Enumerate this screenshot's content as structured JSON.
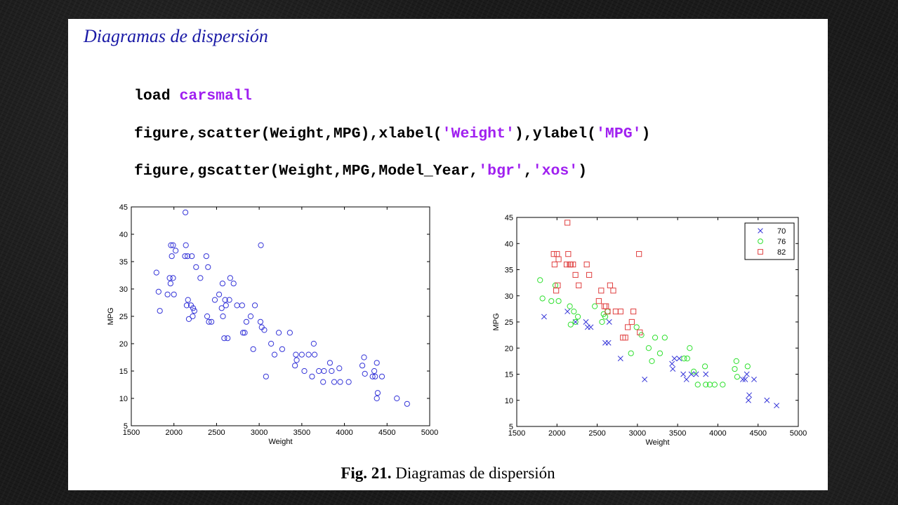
{
  "slide": {
    "title": "Diagramas de dispersión",
    "code": {
      "line1": {
        "plain": "load ",
        "str": "carsmall"
      },
      "line2": {
        "p1": "figure,scatter(Weight,MPG),xlabel(",
        "s1": "'Weight'",
        "p2": "),ylabel(",
        "s2": "'MPG'",
        "p3": ")"
      },
      "line3": {
        "p1": "figure,gscatter(Weight,MPG,Model_Year,",
        "s1": "'bgr'",
        "p2": ",",
        "s2": "'xos'",
        "p3": ")"
      }
    },
    "caption": {
      "label": "Fig. 21.",
      "text": "Diagramas de dispersión"
    }
  },
  "colors": {
    "blue": "#3434d8",
    "green": "#2ee02e",
    "red": "#e04040",
    "title": "#1a1aa6",
    "keyword": "#a020f0"
  },
  "chart_data": [
    {
      "type": "scatter",
      "title": "",
      "xlabel": "Weight",
      "ylabel": "MPG",
      "xlim": [
        1500,
        5000
      ],
      "ylim": [
        5,
        45
      ],
      "xticks": [
        1500,
        2000,
        2500,
        3000,
        3500,
        4000,
        4500,
        5000
      ],
      "yticks": [
        5,
        10,
        15,
        20,
        25,
        30,
        35,
        40,
        45
      ],
      "marker": "o",
      "color": "#3434d8",
      "points": [
        [
          1795,
          33
        ],
        [
          1820,
          29.5
        ],
        [
          1835,
          26
        ],
        [
          1925,
          29
        ],
        [
          1950,
          32
        ],
        [
          1960,
          31
        ],
        [
          1965,
          38
        ],
        [
          1975,
          36
        ],
        [
          1990,
          38
        ],
        [
          1990,
          32
        ],
        [
          2000,
          29
        ],
        [
          2020,
          37
        ],
        [
          2130,
          36
        ],
        [
          2135,
          44
        ],
        [
          2140,
          38
        ],
        [
          2150,
          27
        ],
        [
          2160,
          36
        ],
        [
          2165,
          28
        ],
        [
          2175,
          24.5
        ],
        [
          2200,
          27
        ],
        [
          2210,
          36
        ],
        [
          2220,
          25
        ],
        [
          2225,
          26.5
        ],
        [
          2240,
          26
        ],
        [
          2260,
          34
        ],
        [
          2310,
          32
        ],
        [
          2380,
          36
        ],
        [
          2390,
          25
        ],
        [
          2400,
          34
        ],
        [
          2410,
          24
        ],
        [
          2440,
          24
        ],
        [
          2480,
          28
        ],
        [
          2530,
          29
        ],
        [
          2560,
          26.5
        ],
        [
          2570,
          31
        ],
        [
          2575,
          25
        ],
        [
          2590,
          21
        ],
        [
          2600,
          28
        ],
        [
          2610,
          27
        ],
        [
          2630,
          21
        ],
        [
          2650,
          28
        ],
        [
          2660,
          32
        ],
        [
          2700,
          31
        ],
        [
          2740,
          27
        ],
        [
          2800,
          27
        ],
        [
          2810,
          22
        ],
        [
          2830,
          22
        ],
        [
          2850,
          24
        ],
        [
          2900,
          25
        ],
        [
          2930,
          19
        ],
        [
          2950,
          27
        ],
        [
          3015,
          24
        ],
        [
          3020,
          38
        ],
        [
          3030,
          23
        ],
        [
          3060,
          22.5
        ],
        [
          3080,
          14
        ],
        [
          3140,
          20
        ],
        [
          3180,
          18
        ],
        [
          3230,
          22
        ],
        [
          3270,
          19
        ],
        [
          3360,
          22
        ],
        [
          3420,
          16
        ],
        [
          3430,
          18
        ],
        [
          3440,
          17
        ],
        [
          3500,
          18
        ],
        [
          3530,
          15
        ],
        [
          3580,
          18
        ],
        [
          3620,
          14
        ],
        [
          3640,
          20
        ],
        [
          3650,
          18
        ],
        [
          3700,
          15
        ],
        [
          3750,
          13
        ],
        [
          3760,
          15
        ],
        [
          3830,
          16.5
        ],
        [
          3850,
          15
        ],
        [
          3880,
          13
        ],
        [
          3940,
          15.5
        ],
        [
          3950,
          13
        ],
        [
          4050,
          13
        ],
        [
          4210,
          16
        ],
        [
          4230,
          17.5
        ],
        [
          4240,
          14.5
        ],
        [
          4330,
          14
        ],
        [
          4350,
          15
        ],
        [
          4360,
          14
        ],
        [
          4380,
          16.5
        ],
        [
          4380,
          10
        ],
        [
          4390,
          11
        ],
        [
          4440,
          14
        ],
        [
          4615,
          10
        ],
        [
          4735,
          9
        ]
      ]
    },
    {
      "type": "scatter",
      "title": "",
      "xlabel": "Weight",
      "ylabel": "MPG",
      "xlim": [
        1500,
        5000
      ],
      "ylim": [
        5,
        45
      ],
      "xticks": [
        1500,
        2000,
        2500,
        3000,
        3500,
        4000,
        4500,
        5000
      ],
      "yticks": [
        5,
        10,
        15,
        20,
        25,
        30,
        35,
        40,
        45
      ],
      "legend": "top-right",
      "series": [
        {
          "name": "70",
          "marker": "x",
          "color": "#3434d8",
          "points": [
            [
              1840,
              26
            ],
            [
              2130,
              27
            ],
            [
              2230,
              25
            ],
            [
              2360,
              25
            ],
            [
              2380,
              24
            ],
            [
              2420,
              24
            ],
            [
              2600,
              21
            ],
            [
              2640,
              21
            ],
            [
              2650,
              25
            ],
            [
              2790,
              18
            ],
            [
              3090,
              14
            ],
            [
              3430,
              17
            ],
            [
              3440,
              16
            ],
            [
              3460,
              18
            ],
            [
              3520,
              18
            ],
            [
              3570,
              15
            ],
            [
              3610,
              14
            ],
            [
              3670,
              15
            ],
            [
              3730,
              15
            ],
            [
              3850,
              15
            ],
            [
              4310,
              14
            ],
            [
              4340,
              14
            ],
            [
              4360,
              15
            ],
            [
              4380,
              10
            ],
            [
              4390,
              11
            ],
            [
              4450,
              14
            ],
            [
              4610,
              10
            ],
            [
              4730,
              9
            ]
          ]
        },
        {
          "name": "76",
          "marker": "o",
          "color": "#2ee02e",
          "points": [
            [
              1790,
              33
            ],
            [
              1820,
              29.5
            ],
            [
              1930,
              29
            ],
            [
              1980,
              32
            ],
            [
              2020,
              29
            ],
            [
              2160,
              28
            ],
            [
              2170,
              24.5
            ],
            [
              2210,
              27
            ],
            [
              2230,
              25
            ],
            [
              2260,
              26
            ],
            [
              2470,
              28
            ],
            [
              2560,
              25
            ],
            [
              2580,
              26.5
            ],
            [
              2600,
              26
            ],
            [
              2630,
              27
            ],
            [
              2920,
              19
            ],
            [
              2990,
              24
            ],
            [
              3050,
              22.5
            ],
            [
              3140,
              20
            ],
            [
              3180,
              17.5
            ],
            [
              3220,
              22
            ],
            [
              3280,
              19
            ],
            [
              3340,
              22
            ],
            [
              3580,
              18
            ],
            [
              3620,
              18
            ],
            [
              3650,
              20
            ],
            [
              3700,
              15.5
            ],
            [
              3750,
              13
            ],
            [
              3840,
              16.5
            ],
            [
              3850,
              13
            ],
            [
              3900,
              13
            ],
            [
              3960,
              13
            ],
            [
              4060,
              13
            ],
            [
              4210,
              16
            ],
            [
              4230,
              17.5
            ],
            [
              4240,
              14.5
            ],
            [
              4370,
              16.5
            ]
          ]
        },
        {
          "name": "82",
          "marker": "s",
          "color": "#e04040",
          "points": [
            [
              1960,
              38
            ],
            [
              1970,
              36
            ],
            [
              1990,
              31
            ],
            [
              2000,
              38
            ],
            [
              2010,
              32
            ],
            [
              2020,
              37
            ],
            [
              2120,
              36
            ],
            [
              2130,
              44
            ],
            [
              2140,
              38
            ],
            [
              2160,
              36
            ],
            [
              2170,
              36
            ],
            [
              2200,
              36
            ],
            [
              2230,
              34
            ],
            [
              2270,
              32
            ],
            [
              2370,
              36
            ],
            [
              2400,
              34
            ],
            [
              2520,
              29
            ],
            [
              2550,
              31
            ],
            [
              2590,
              28
            ],
            [
              2610,
              28
            ],
            [
              2630,
              27
            ],
            [
              2660,
              32
            ],
            [
              2700,
              31
            ],
            [
              2730,
              27
            ],
            [
              2790,
              27
            ],
            [
              2820,
              22
            ],
            [
              2850,
              22
            ],
            [
              2880,
              24
            ],
            [
              2930,
              25
            ],
            [
              2950,
              27
            ],
            [
              3020,
              38
            ],
            [
              3030,
              23
            ]
          ]
        }
      ]
    }
  ]
}
